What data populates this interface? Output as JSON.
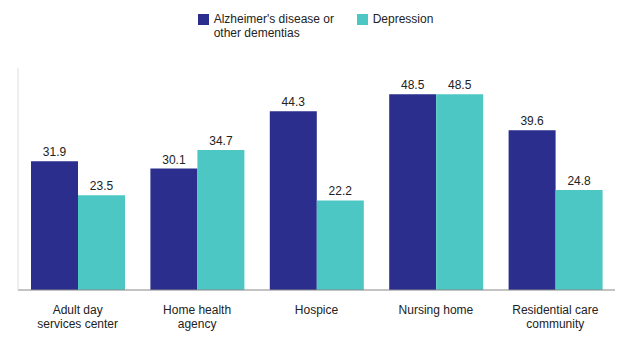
{
  "chart_data": {
    "type": "bar",
    "categories": [
      "Adult day services center",
      "Home health agency",
      "Hospice",
      "Nursing home",
      "Residential care community"
    ],
    "series": [
      {
        "name": "Alzheimer's disease or other dementias",
        "color": "#2b2e8c",
        "values": [
          31.9,
          30.1,
          44.3,
          48.5,
          39.6
        ]
      },
      {
        "name": "Depression",
        "color": "#4cc7c4",
        "values": [
          23.5,
          34.7,
          22.2,
          48.5,
          24.8
        ]
      }
    ],
    "ylim": [
      0,
      55
    ],
    "data_labels": true,
    "legend": "top",
    "tick_labels": "x"
  }
}
